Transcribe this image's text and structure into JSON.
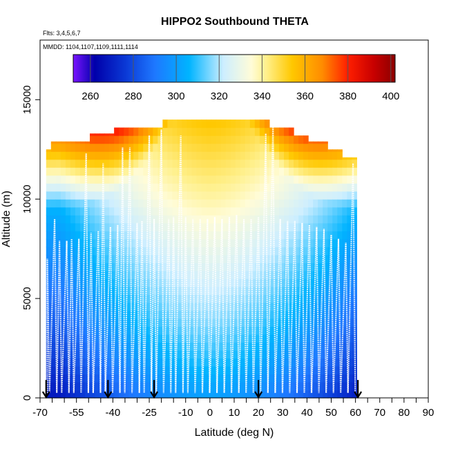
{
  "chart_data": {
    "type": "heatmap",
    "title": "HIPPO2 Southbound THETA",
    "annotation_flights": "Flts: 3,4,5,6,7",
    "annotation_dates": "MMDD: 1104,1107,1109,1111,1114",
    "xlabel": "Latitude (deg N)",
    "ylabel": "Altitude (m)",
    "xlim": [
      -70,
      90
    ],
    "ylim": [
      0,
      18000
    ],
    "x_tick_labels": [
      "-70",
      "-55",
      "-40",
      "-25",
      "-10",
      "0",
      "10",
      "20",
      "30",
      "40",
      "50",
      "60",
      "70",
      "80",
      "90"
    ],
    "x_tick_values": [
      -70,
      -55,
      -40,
      -25,
      -10,
      0,
      10,
      20,
      30,
      40,
      50,
      60,
      70,
      80,
      90
    ],
    "x_minor_ticks": [
      -65,
      -60,
      -50,
      -45,
      -35,
      -30,
      -20,
      -15,
      -5,
      5,
      15,
      25,
      35,
      45,
      55,
      65,
      75,
      85
    ],
    "y_tick_labels": [
      "0",
      "5000",
      "10000",
      "15000"
    ],
    "y_tick_values": [
      0,
      5000,
      10000,
      15000
    ],
    "colorbar": {
      "range": [
        252,
        402
      ],
      "tick_labels": [
        "260",
        "280",
        "300",
        "320",
        "340",
        "360",
        "380",
        "400"
      ],
      "tick_values": [
        260,
        280,
        300,
        320,
        340,
        360,
        380,
        400
      ],
      "color_stops": [
        [
          252,
          "#7a14ff"
        ],
        [
          262,
          "#0000aa"
        ],
        [
          276,
          "#0a37d4"
        ],
        [
          290,
          "#1e78ff"
        ],
        [
          306,
          "#00b4ff"
        ],
        [
          322,
          "#cdeeff"
        ],
        [
          335,
          "#fffcd8"
        ],
        [
          342,
          "#fff08c"
        ],
        [
          354,
          "#ffc800"
        ],
        [
          368,
          "#ff8c00"
        ],
        [
          380,
          "#ff1e00"
        ],
        [
          392,
          "#c80000"
        ],
        [
          402,
          "#8c0000"
        ]
      ]
    },
    "theta_field": {
      "surface_theta": 268,
      "equator_surface_theta": 300,
      "lapse_per_km": [
        4.5,
        4.5,
        4.0,
        4.0,
        3.5,
        3.5,
        3.5,
        3.5,
        4.0,
        4.5
      ],
      "tropopause_extra": "steep increase above tropopause"
    },
    "data_coverage_top_altitude": [
      [
        -67.5,
        12500
      ],
      [
        -65,
        12900
      ],
      [
        -55,
        12900
      ],
      [
        -50,
        13300
      ],
      [
        -40,
        13600
      ],
      [
        -30,
        13600
      ],
      [
        -20,
        14000
      ],
      [
        -10,
        14000
      ],
      [
        0,
        14000
      ],
      [
        10,
        14000
      ],
      [
        20,
        14000
      ],
      [
        25,
        13600
      ],
      [
        35,
        13200
      ],
      [
        40,
        12900
      ],
      [
        48,
        12500
      ],
      [
        55,
        12100
      ],
      [
        60,
        11700
      ]
    ],
    "data_coverage_lat_range": [
      -67.5,
      60.5
    ],
    "profiles": {
      "description": "aircraft vertical profiles (white dotted flight track)",
      "surface_altitude": 250,
      "latitudes": [
        -67,
        -64,
        -62,
        -59,
        -57,
        -54,
        -51,
        -49,
        -46,
        -44,
        -41,
        -38,
        -36,
        -33,
        -30,
        -28,
        -25,
        -23,
        -20,
        -17,
        -15,
        -12,
        -10,
        -7,
        -4,
        -1,
        2,
        5,
        8,
        11,
        14,
        17,
        20,
        23,
        26,
        29,
        32,
        35,
        38,
        41,
        44,
        47,
        50,
        53,
        56,
        59
      ],
      "tops": [
        7000,
        9000,
        7900,
        7900,
        8000,
        8000,
        12300,
        8300,
        8400,
        11800,
        8600,
        8700,
        12600,
        12600,
        8800,
        8900,
        13200,
        9000,
        13500,
        9000,
        9100,
        13200,
        9100,
        9000,
        9000,
        9000,
        9100,
        9000,
        9100,
        9200,
        9000,
        9000,
        9100,
        13300,
        13700,
        9000,
        8900,
        8900,
        8800,
        8700,
        8600,
        8500,
        8200,
        8000,
        7800,
        11800
      ]
    },
    "flight_boundary_markers": [
      -67.5,
      -42,
      -23,
      20,
      61
    ],
    "marker_label": "down arrows at flight boundaries"
  }
}
